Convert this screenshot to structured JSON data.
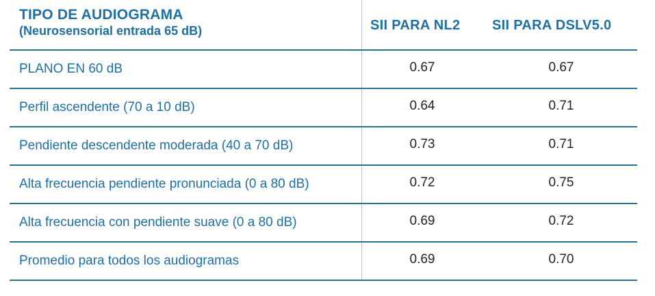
{
  "header": {
    "title_line1": "TIPO DE AUDIOGRAMA",
    "title_line2": "(Neurosensorial entrada 65 dB)",
    "col1": "SII PARA NL2",
    "col2": "SII PARA DSLV5.0"
  },
  "rows": [
    {
      "label": "PLANO EN 60 dB",
      "nl2": "0.67",
      "dsl": "0.67"
    },
    {
      "label": "Perfil ascendente (70 a 10 dB)",
      "nl2": "0.64",
      "dsl": "0.71"
    },
    {
      "label": "Pendiente descendente moderada (40 a 70 dB)",
      "nl2": "0.73",
      "dsl": "0.71"
    },
    {
      "label": "Alta frecuencia pendiente pronunciada (0 a 80 dB)",
      "nl2": "0.72",
      "dsl": "0.75"
    },
    {
      "label": "Alta frecuencia con pendiente suave (0 a 80 dB)",
      "nl2": "0.69",
      "dsl": "0.72"
    },
    {
      "label": "Promedio para todos los audiogramas",
      "nl2": "0.69",
      "dsl": "0.70"
    }
  ],
  "colors": {
    "accent": "#1e6fa3",
    "rule": "#2a6f97",
    "value_text": "#222222"
  }
}
